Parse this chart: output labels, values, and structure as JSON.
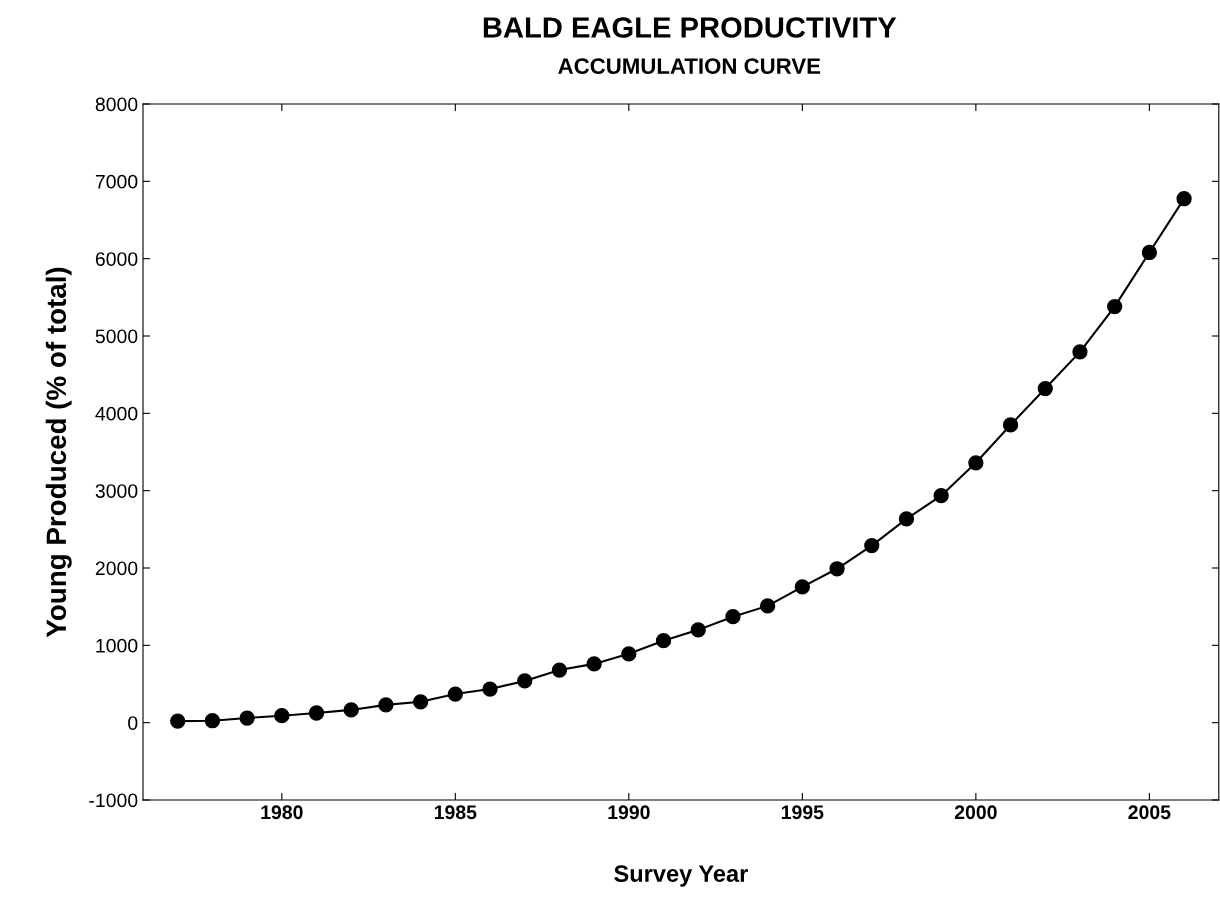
{
  "chart_data": {
    "type": "line",
    "title": "BALD EAGLE PRODUCTIVITY",
    "subtitle": "ACCUMULATION CURVE",
    "xlabel": "Survey Year",
    "ylabel": "Young Produced (% of total)",
    "x": [
      1977,
      1978,
      1979,
      1980,
      1981,
      1982,
      1983,
      1984,
      1985,
      1986,
      1987,
      1988,
      1989,
      1990,
      1991,
      1992,
      1993,
      1994,
      1995,
      1996,
      1997,
      1998,
      1999,
      2000,
      2001,
      2002,
      2003,
      2004,
      2005,
      2006
    ],
    "series": [
      {
        "color": "#000000",
        "values": [
          20,
          25,
          60,
          90,
          125,
          165,
          230,
          270,
          370,
          435,
          540,
          680,
          760,
          890,
          1060,
          1200,
          1370,
          1510,
          1755,
          1990,
          2290,
          2635,
          2935,
          3360,
          3850,
          4320,
          4795,
          5380,
          6080,
          6775
        ]
      }
    ],
    "xlim": [
      1976,
      2007
    ],
    "xticks": [
      1980,
      1985,
      1990,
      1995,
      2000,
      2005
    ],
    "ylim": [
      -1000,
      8000
    ],
    "yticks": [
      -1000,
      0,
      1000,
      2000,
      3000,
      4000,
      5000,
      6000,
      7000,
      8000
    ],
    "grid": false,
    "legend": false,
    "marker": "circle",
    "line_style": "solid"
  }
}
